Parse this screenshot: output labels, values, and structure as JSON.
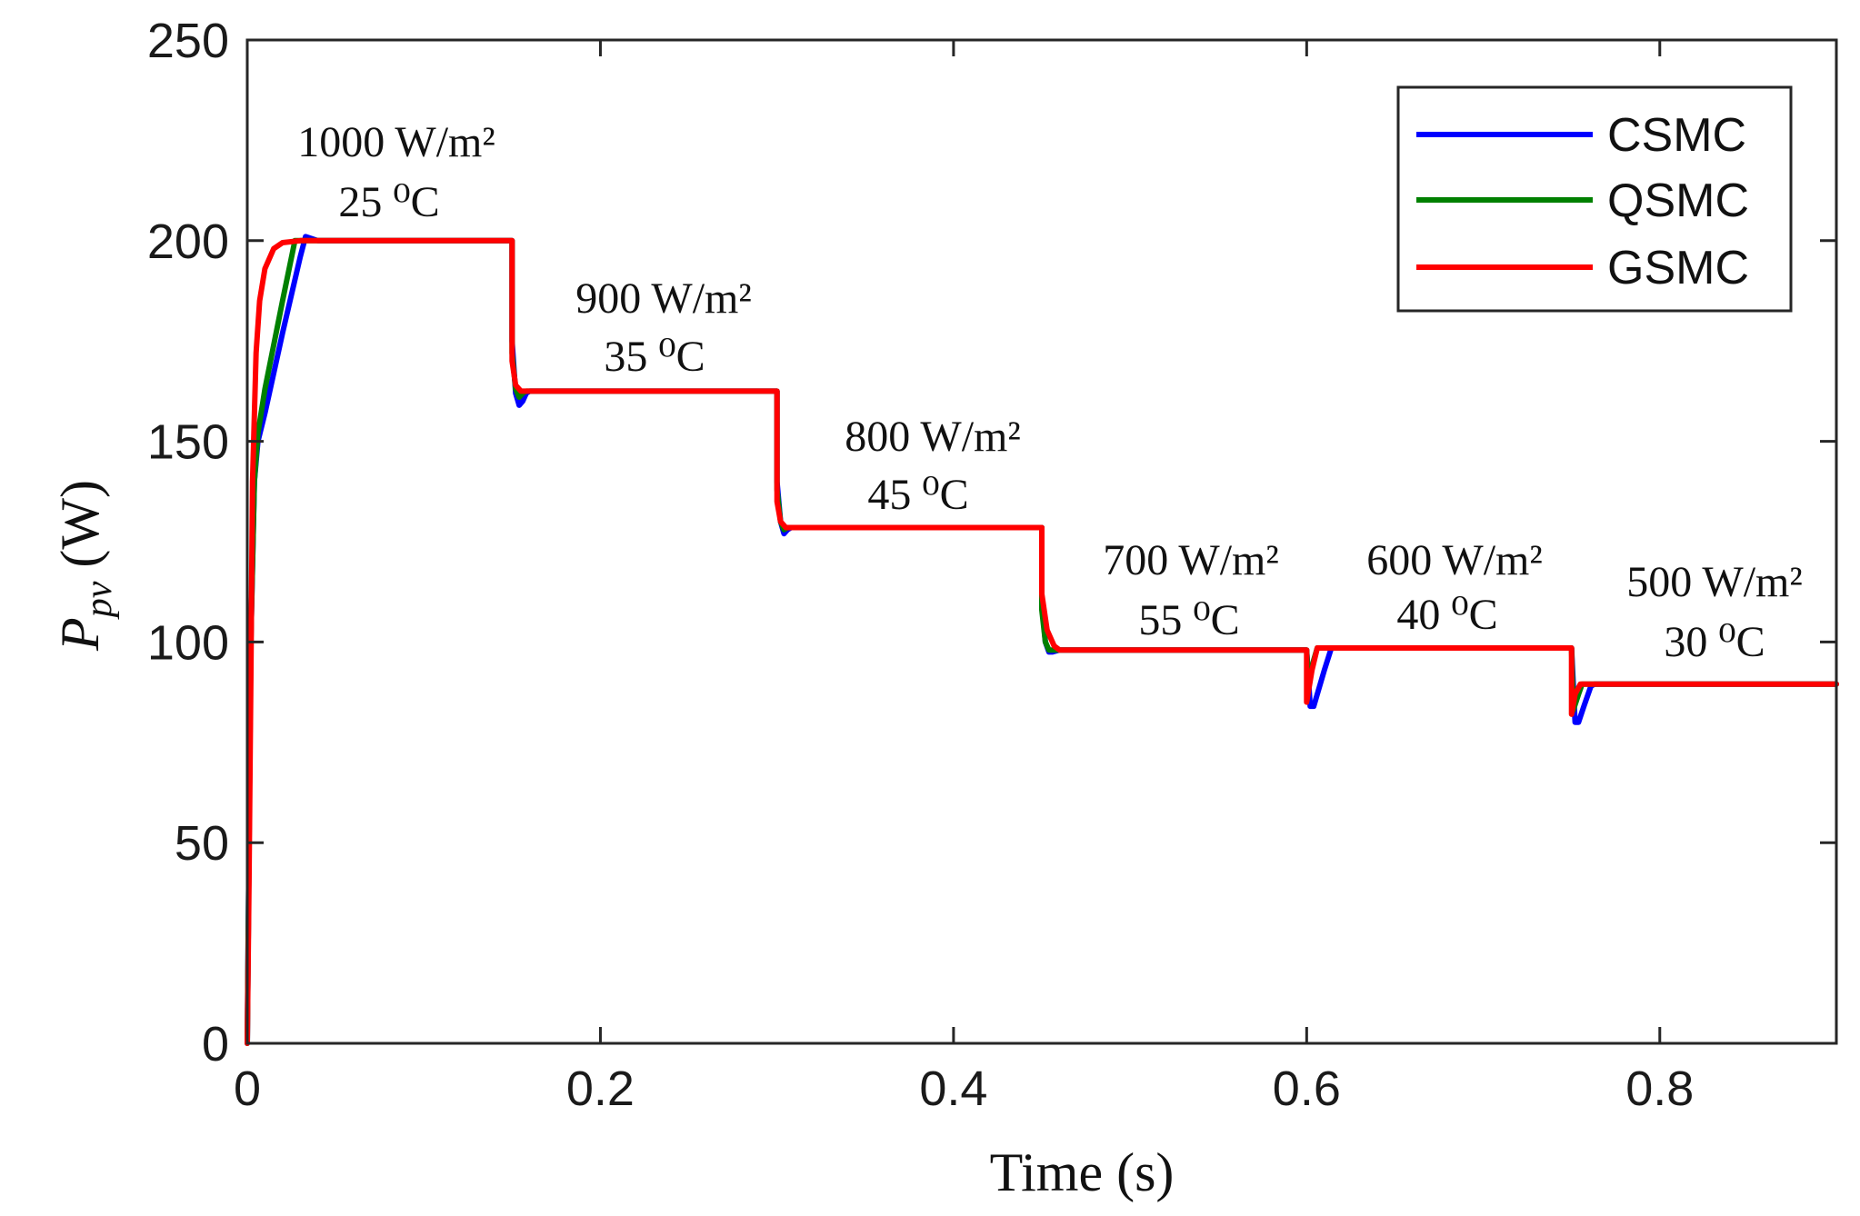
{
  "chart_data": {
    "type": "line",
    "title": "",
    "xlabel": "Time (s)",
    "ylabel": {
      "main": "P",
      "sub": "pv",
      "unit": " (W)"
    },
    "xlim": [
      0,
      0.9
    ],
    "ylim": [
      0,
      250
    ],
    "xticks": [
      0,
      0.2,
      0.4,
      0.6,
      0.8
    ],
    "xtick_labels": [
      "0",
      "0.2",
      "0.4",
      "0.6",
      "0.8"
    ],
    "yticks": [
      0,
      50,
      100,
      150,
      200,
      250
    ],
    "ytick_labels": [
      "0",
      "50",
      "100",
      "150",
      "200",
      "250"
    ],
    "grid": false,
    "legend_position": "top-right",
    "series": [
      {
        "name": "CSMC",
        "color": "#0000ff",
        "points": [
          [
            0,
            0
          ],
          [
            0.002,
            100
          ],
          [
            0.004,
            140
          ],
          [
            0.006,
            150
          ],
          [
            0.01,
            157
          ],
          [
            0.02,
            177
          ],
          [
            0.03,
            196
          ],
          [
            0.033,
            201
          ],
          [
            0.04,
            200
          ],
          [
            0.15,
            200
          ],
          [
            0.15,
            175
          ],
          [
            0.152,
            162
          ],
          [
            0.154,
            159
          ],
          [
            0.156,
            160
          ],
          [
            0.158,
            162
          ],
          [
            0.16,
            162.5
          ],
          [
            0.3,
            162.5
          ],
          [
            0.3,
            140
          ],
          [
            0.302,
            130
          ],
          [
            0.304,
            127
          ],
          [
            0.306,
            128
          ],
          [
            0.308,
            128.5
          ],
          [
            0.45,
            128.5
          ],
          [
            0.45,
            110
          ],
          [
            0.452,
            100
          ],
          [
            0.454,
            97.5
          ],
          [
            0.456,
            97.5
          ],
          [
            0.46,
            98
          ],
          [
            0.6,
            98
          ],
          [
            0.602,
            84
          ],
          [
            0.604,
            84
          ],
          [
            0.606,
            87
          ],
          [
            0.61,
            93
          ],
          [
            0.614,
            98.5
          ],
          [
            0.75,
            98.5
          ],
          [
            0.752,
            80
          ],
          [
            0.754,
            80
          ],
          [
            0.757,
            84
          ],
          [
            0.761,
            89
          ],
          [
            0.763,
            89.5
          ],
          [
            0.9,
            89.5
          ]
        ]
      },
      {
        "name": "QSMC",
        "color": "#008000",
        "points": [
          [
            0,
            0
          ],
          [
            0.002,
            100
          ],
          [
            0.004,
            140
          ],
          [
            0.006,
            152
          ],
          [
            0.01,
            163
          ],
          [
            0.02,
            185
          ],
          [
            0.027,
            200
          ],
          [
            0.03,
            200
          ],
          [
            0.15,
            200
          ],
          [
            0.15,
            172
          ],
          [
            0.152,
            163
          ],
          [
            0.154,
            161
          ],
          [
            0.156,
            162
          ],
          [
            0.158,
            162.5
          ],
          [
            0.3,
            162.5
          ],
          [
            0.3,
            138
          ],
          [
            0.302,
            130
          ],
          [
            0.304,
            128
          ],
          [
            0.306,
            128.5
          ],
          [
            0.45,
            128.5
          ],
          [
            0.45,
            108
          ],
          [
            0.452,
            100
          ],
          [
            0.454,
            98
          ],
          [
            0.456,
            98
          ],
          [
            0.6,
            98
          ],
          [
            0.601,
            89
          ],
          [
            0.603,
            94
          ],
          [
            0.606,
            98.5
          ],
          [
            0.75,
            98.5
          ],
          [
            0.751,
            83
          ],
          [
            0.754,
            87
          ],
          [
            0.756,
            89.5
          ],
          [
            0.9,
            89.5
          ]
        ]
      },
      {
        "name": "GSMC",
        "color": "#ff0000",
        "points": [
          [
            0,
            0
          ],
          [
            0.001,
            40
          ],
          [
            0.002,
            90
          ],
          [
            0.003,
            140
          ],
          [
            0.005,
            172
          ],
          [
            0.007,
            185
          ],
          [
            0.01,
            193
          ],
          [
            0.015,
            198
          ],
          [
            0.02,
            199.5
          ],
          [
            0.03,
            200
          ],
          [
            0.15,
            200
          ],
          [
            0.15,
            170
          ],
          [
            0.152,
            164
          ],
          [
            0.155,
            162.5
          ],
          [
            0.3,
            162.5
          ],
          [
            0.3,
            135
          ],
          [
            0.302,
            130
          ],
          [
            0.305,
            128.5
          ],
          [
            0.45,
            128.5
          ],
          [
            0.45,
            112
          ],
          [
            0.453,
            103
          ],
          [
            0.457,
            99
          ],
          [
            0.46,
            98
          ],
          [
            0.6,
            98
          ],
          [
            0.6,
            85
          ],
          [
            0.603,
            93
          ],
          [
            0.606,
            98.5
          ],
          [
            0.75,
            98.5
          ],
          [
            0.75,
            82
          ],
          [
            0.752,
            87
          ],
          [
            0.755,
            89.5
          ],
          [
            0.9,
            89.5
          ]
        ]
      }
    ],
    "annotations": [
      {
        "irradiance": "1000 W/m²",
        "temperature": "25 ⁰C"
      },
      {
        "irradiance": "900 W/m²",
        "temperature": "35 ⁰C"
      },
      {
        "irradiance": "800 W/m²",
        "temperature": "45 ⁰C"
      },
      {
        "irradiance": "700 W/m²",
        "temperature": "55 ⁰C"
      },
      {
        "irradiance": "600 W/m²",
        "temperature": "40 ⁰C"
      },
      {
        "irradiance": "500 W/m²",
        "temperature": "30 ⁰C"
      }
    ]
  }
}
